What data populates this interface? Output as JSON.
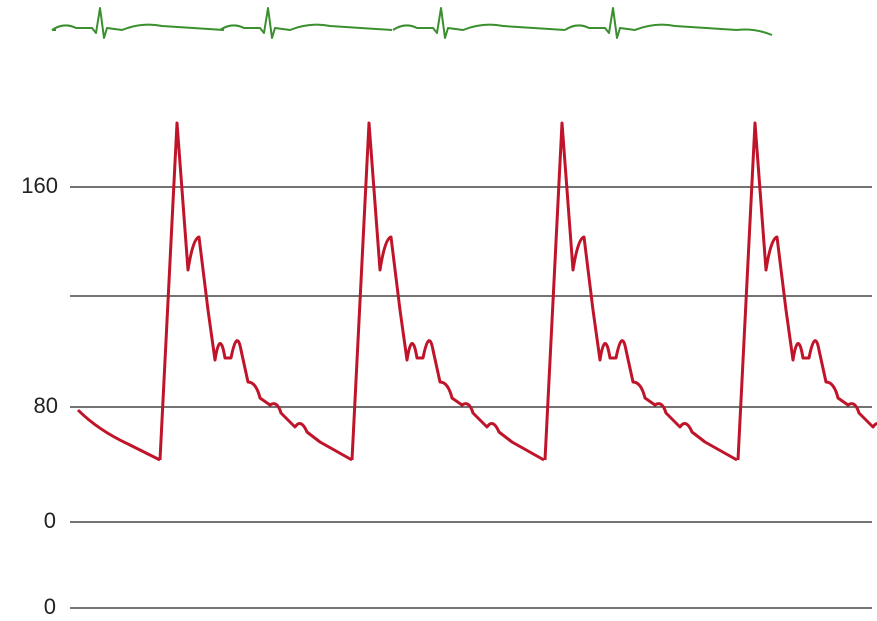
{
  "axis_labels": [
    "160",
    "80",
    "0",
    "0"
  ]
}
